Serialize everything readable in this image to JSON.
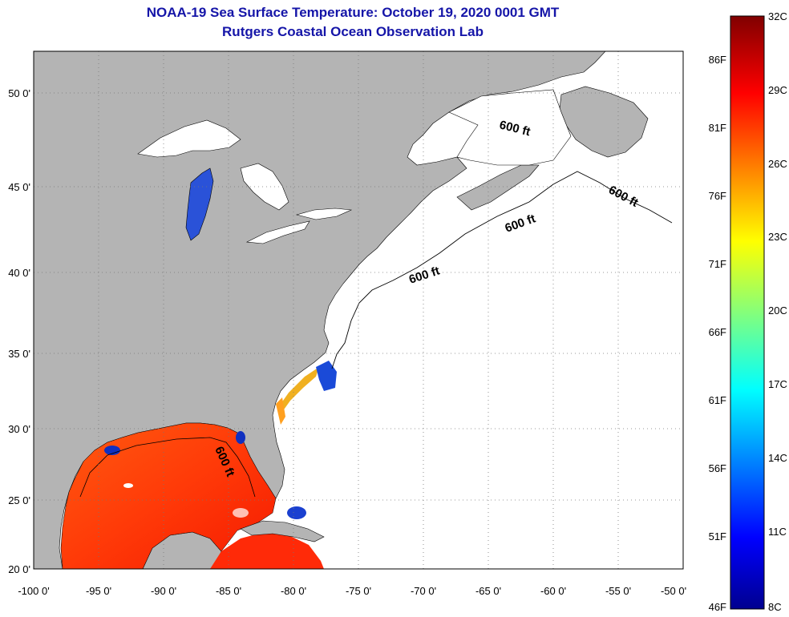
{
  "header": {
    "title_line1": "NOAA-19 Sea Surface Temperature:  October 19, 2020 0001 GMT",
    "title_line2": "Rutgers Coastal Ocean Observation Lab"
  },
  "map": {
    "lon_labels": [
      "-100 0'",
      "-95 0'",
      "-90 0'",
      "-85 0'",
      "-80 0'",
      "-75 0'",
      "-70 0'",
      "-65 0'",
      "-60 0'",
      "-55 0'",
      "-50 0'"
    ],
    "lat_labels": [
      "50 0'",
      "45 0'",
      "40 0'",
      "35 0'",
      "30 0'",
      "25 0'",
      "20 0'"
    ],
    "contour_label": "600 ft",
    "colors": {
      "land": "#b4b4b4",
      "ocean": "#ffffff",
      "grid": "#666666",
      "title": "#1515a8"
    }
  },
  "colorbar": {
    "celsius_labels": [
      "32C",
      "29C",
      "26C",
      "23C",
      "20C",
      "17C",
      "14C",
      "11C",
      "8C"
    ],
    "fahrenheit_labels": [
      "86F",
      "81F",
      "76F",
      "71F",
      "66F",
      "61F",
      "56F",
      "51F",
      "46F"
    ]
  }
}
